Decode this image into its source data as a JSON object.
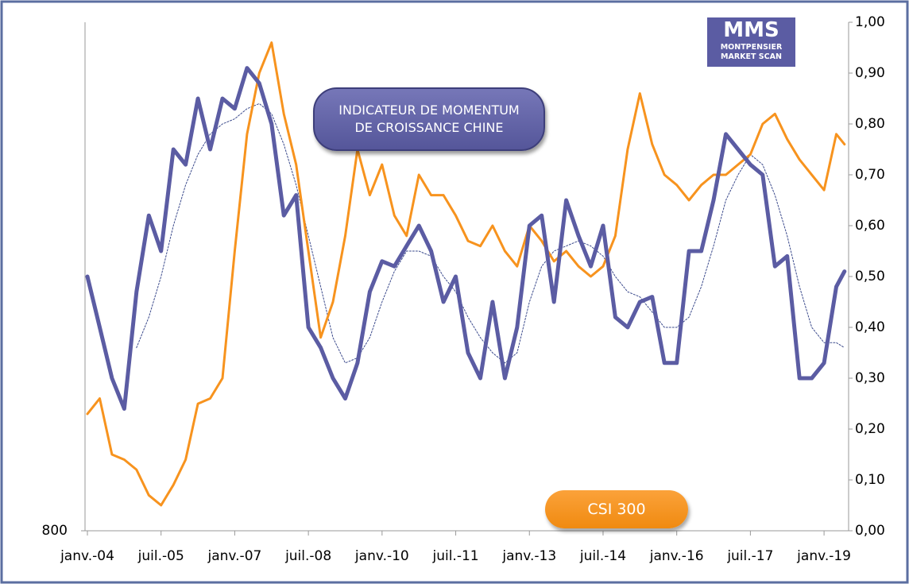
{
  "chart_data": {
    "type": "line",
    "logo": {
      "title": "MMS",
      "line1": "MONTPENSIER",
      "line2": "MARKET SCAN"
    },
    "x": [
      "2004-01",
      "2004-04",
      "2004-07",
      "2004-10",
      "2005-01",
      "2005-04",
      "2005-07",
      "2005-10",
      "2006-01",
      "2006-04",
      "2006-07",
      "2006-10",
      "2007-01",
      "2007-04",
      "2007-07",
      "2007-10",
      "2008-01",
      "2008-04",
      "2008-07",
      "2008-10",
      "2009-01",
      "2009-04",
      "2009-07",
      "2009-10",
      "2010-01",
      "2010-04",
      "2010-07",
      "2010-10",
      "2011-01",
      "2011-04",
      "2011-07",
      "2011-10",
      "2012-01",
      "2012-04",
      "2012-07",
      "2012-10",
      "2013-01",
      "2013-04",
      "2013-07",
      "2013-10",
      "2014-01",
      "2014-04",
      "2014-07",
      "2014-10",
      "2015-01",
      "2015-04",
      "2015-07",
      "2015-10",
      "2016-01",
      "2016-04",
      "2016-07",
      "2016-10",
      "2017-01",
      "2017-04",
      "2017-07",
      "2017-10",
      "2018-01",
      "2018-04",
      "2018-07",
      "2018-10",
      "2019-01",
      "2019-04",
      "2019-06"
    ],
    "xlim": [
      "2004-01",
      "2019-07"
    ],
    "xticks": [
      {
        "value": "2004-01",
        "label": "janv.-04"
      },
      {
        "value": "2005-07",
        "label": "juil.-05"
      },
      {
        "value": "2007-01",
        "label": "janv.-07"
      },
      {
        "value": "2008-07",
        "label": "juil.-08"
      },
      {
        "value": "2010-01",
        "label": "janv.-10"
      },
      {
        "value": "2011-07",
        "label": "juil.-11"
      },
      {
        "value": "2013-01",
        "label": "janv.-13"
      },
      {
        "value": "2014-07",
        "label": "juil.-14"
      },
      {
        "value": "2016-01",
        "label": "janv.-16"
      },
      {
        "value": "2017-07",
        "label": "juil.-17"
      },
      {
        "value": "2019-01",
        "label": "janv.-19"
      }
    ],
    "ylim": [
      800,
      6400
    ],
    "ylog": true,
    "yticks": [
      800
    ],
    "y2lim": [
      0,
      1
    ],
    "y2ticks": [
      {
        "value": 0,
        "label": "0,00"
      },
      {
        "value": 0.1,
        "label": "0,10"
      },
      {
        "value": 0.2,
        "label": "0,20"
      },
      {
        "value": 0.3,
        "label": "0,30"
      },
      {
        "value": 0.4,
        "label": "0,40"
      },
      {
        "value": 0.5,
        "label": "0,50"
      },
      {
        "value": 0.6,
        "label": "0,60"
      },
      {
        "value": 0.7,
        "label": "0,70"
      },
      {
        "value": 0.8,
        "label": "0,80"
      },
      {
        "value": 0.9,
        "label": "0,90"
      },
      {
        "value": 1,
        "label": "1,00"
      }
    ],
    "series": [
      {
        "name": "INDICATEUR DE MOMENTUM DE CROISSANCE CHINE",
        "color": "#5b5ca3",
        "axis": "y2",
        "values": [
          0.5,
          0.4,
          0.3,
          0.24,
          0.47,
          0.62,
          0.55,
          0.75,
          0.72,
          0.85,
          0.75,
          0.85,
          0.83,
          0.91,
          0.88,
          0.8,
          0.62,
          0.66,
          0.4,
          0.36,
          0.3,
          0.26,
          0.33,
          0.47,
          0.53,
          0.52,
          0.56,
          0.6,
          0.55,
          0.45,
          0.5,
          0.35,
          0.3,
          0.45,
          0.3,
          0.4,
          0.6,
          0.62,
          0.45,
          0.65,
          0.58,
          0.52,
          0.6,
          0.42,
          0.4,
          0.45,
          0.46,
          0.33,
          0.33,
          0.55,
          0.55,
          0.65,
          0.78,
          0.75,
          0.72,
          0.7,
          0.52,
          0.54,
          0.3,
          0.3,
          0.33,
          0.48,
          0.51
        ]
      },
      {
        "name": "CSI 300",
        "color": "#f7931e",
        "axis": "y",
        "values": [
          1290,
          1374,
          1093,
          1070,
          1027,
          925,
          888,
          965,
          1070,
          1345,
          1374,
          1493,
          2511,
          4050,
          5200,
          5890,
          4400,
          3577,
          2511,
          1763,
          2039,
          2672,
          3806,
          3156,
          3577,
          2904,
          2672,
          3430,
          3156,
          3156,
          2904,
          2617,
          2563,
          2786,
          2511,
          2359,
          2786,
          2617,
          2408,
          2511,
          2359,
          2263,
          2359,
          2672,
          3806,
          4784,
          3886,
          3430,
          3290,
          3091,
          3290,
          3430,
          3430,
          3577,
          3728,
          4222,
          4400,
          3967,
          3650,
          3430,
          3222,
          4050,
          3886
        ]
      },
      {
        "color": "#3b4a8c",
        "axis": "y2",
        "dash": true,
        "values": [
          null,
          null,
          null,
          null,
          0.36,
          0.42,
          0.5,
          0.6,
          0.68,
          0.74,
          0.78,
          0.8,
          0.81,
          0.83,
          0.84,
          0.82,
          0.76,
          0.68,
          0.58,
          0.48,
          0.38,
          0.33,
          0.34,
          0.38,
          0.45,
          0.51,
          0.55,
          0.55,
          0.54,
          0.5,
          0.47,
          0.42,
          0.38,
          0.35,
          0.33,
          0.35,
          0.45,
          0.52,
          0.55,
          0.56,
          0.57,
          0.56,
          0.54,
          0.5,
          0.47,
          0.46,
          0.43,
          0.4,
          0.4,
          0.42,
          0.48,
          0.56,
          0.65,
          0.7,
          0.74,
          0.72,
          0.66,
          0.58,
          0.48,
          0.4,
          0.37,
          0.37,
          0.36
        ]
      }
    ]
  }
}
